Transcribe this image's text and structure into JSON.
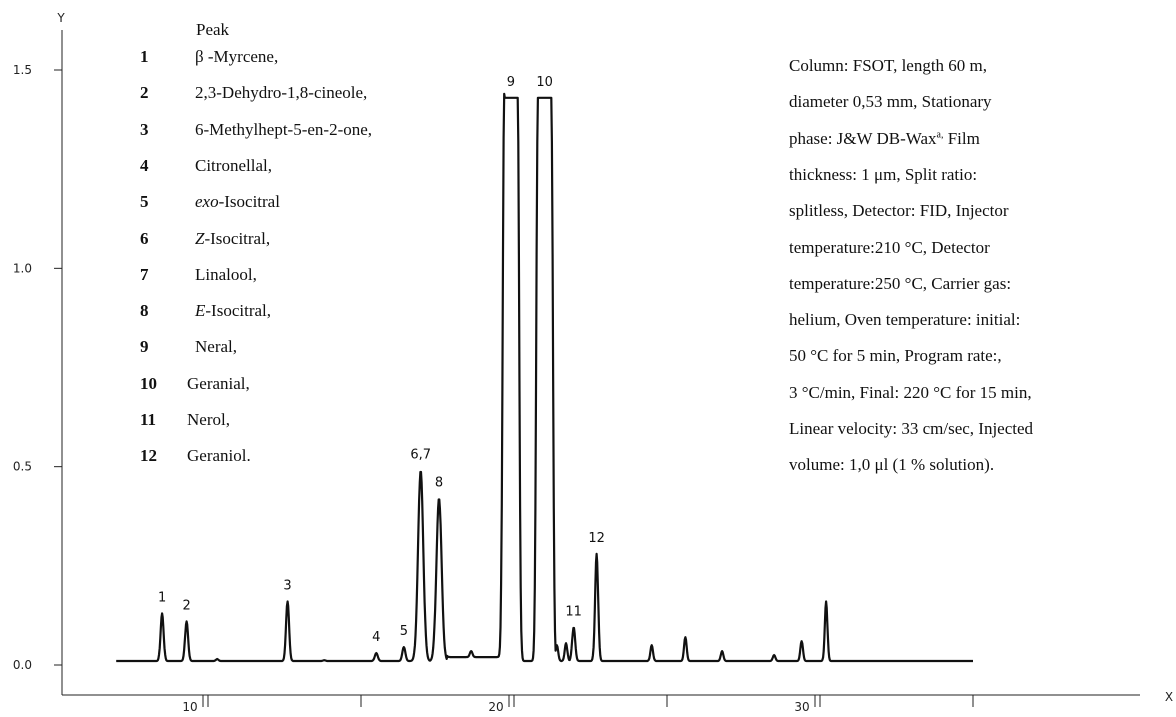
{
  "chart_data": {
    "type": "line",
    "title": "",
    "xlabel": "X",
    "ylabel": "Y",
    "xlim": [
      -1.5,
      37.5
    ],
    "ylim": [
      0,
      1.6
    ],
    "x_ticks": [
      10,
      20,
      30
    ],
    "y_ticks": [
      "0.0",
      "0.5",
      "1.0",
      "1.5"
    ],
    "y_tick_values": [
      0.0,
      0.5,
      1.0,
      1.5
    ],
    "grid": false,
    "baseline": 0.01,
    "series": [
      {
        "peaks": [
          {
            "label": "1",
            "x": 8.5,
            "y": 0.13
          },
          {
            "label": "2",
            "x": 9.3,
            "y": 0.11
          },
          {
            "label": "3",
            "x": 12.6,
            "y": 0.16
          },
          {
            "label": "4",
            "x": 15.5,
            "y": 0.03
          },
          {
            "label": "5",
            "x": 16.4,
            "y": 0.045
          },
          {
            "label": "6,7",
            "x": 16.95,
            "y": 0.49
          },
          {
            "label": "8",
            "x": 17.55,
            "y": 0.42
          },
          {
            "label": "9",
            "x": 19.9,
            "y": 1.43
          },
          {
            "label": "10",
            "x": 21.0,
            "y": 1.43
          },
          {
            "label": "11",
            "x": 21.95,
            "y": 0.095
          },
          {
            "label": "12",
            "x": 22.7,
            "y": 0.28
          }
        ],
        "minor_peaks": [
          {
            "x": 10.3,
            "y": 0.015
          },
          {
            "x": 13.8,
            "y": 0.012
          },
          {
            "x": 14.2,
            "y": 0.01
          },
          {
            "x": 18.6,
            "y": 0.025
          },
          {
            "x": 21.4,
            "y": 0.05
          },
          {
            "x": 21.7,
            "y": 0.055
          },
          {
            "x": 24.5,
            "y": 0.05
          },
          {
            "x": 25.6,
            "y": 0.07
          },
          {
            "x": 26.8,
            "y": 0.035
          },
          {
            "x": 28.5,
            "y": 0.025
          },
          {
            "x": 29.4,
            "y": 0.06
          },
          {
            "x": 30.2,
            "y": 0.16
          }
        ]
      }
    ]
  },
  "legend": {
    "title": "Peak",
    "items": [
      {
        "num": "1",
        "name": "β -Myrcene,"
      },
      {
        "num": "2",
        "name": "2,3-Dehydro-1,8-cineole,"
      },
      {
        "num": "3",
        "name": "6-Methylhept-5-en-2-one,"
      },
      {
        "num": "4",
        "name": "Citronellal,"
      },
      {
        "num": "5",
        "name_italic": "exo",
        "name": "-Isocitral"
      },
      {
        "num": "6",
        "name_italic": "Z",
        "name": "-Isocitral,"
      },
      {
        "num": "7",
        "name": "Linalool,"
      },
      {
        "num": "8",
        "name_italic": "E",
        "name": "-Isocitral,"
      },
      {
        "num": "9",
        "name": "Neral,"
      },
      {
        "num": "10",
        "name": "Geranial,"
      },
      {
        "num": "11",
        "name": "Nerol,"
      },
      {
        "num": "12",
        "name": "Geraniol."
      }
    ]
  },
  "conditions": {
    "lines": [
      "Column: FSOT, length 60 m,",
      "diameter 0,53 mm, Stationary",
      "phase: J&W DB-Wax",
      "thickness: 1 μm, Split ratio:",
      "splitless, Detector: FID, Injector",
      "temperature:210 °C, Detector",
      "temperature:250 °C, Carrier gas:",
      "helium, Oven temperature: initial:",
      "50 °C for 5 min, Program rate:,",
      "3 °C/min, Final: 220 °C for 15 min,",
      "Linear velocity: 33 cm/sec, Injected",
      "volume: 1,0 μl (1 % solution)."
    ],
    "sup": "a,",
    "line3_tail": " Film"
  }
}
